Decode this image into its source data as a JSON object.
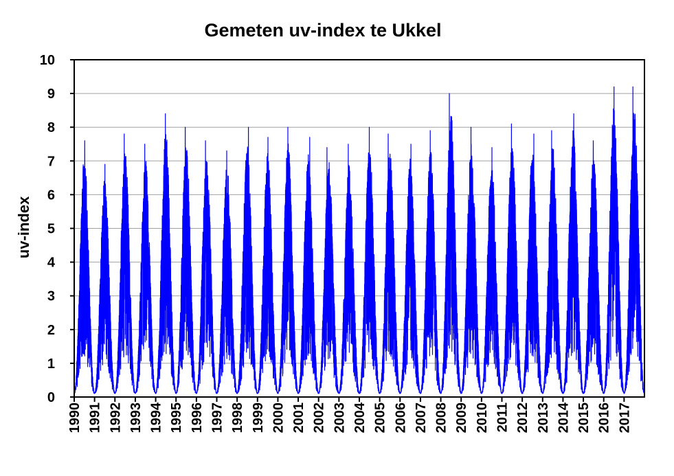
{
  "chart_data": {
    "type": "line",
    "title": "Gemeten uv-index te Ukkel",
    "xlabel": "",
    "ylabel": "uv-index",
    "xlim": [
      1990,
      2018
    ],
    "ylim": [
      0,
      10
    ],
    "y_ticks": [
      0,
      1,
      2,
      3,
      4,
      5,
      6,
      7,
      8,
      9,
      10
    ],
    "x_ticks": [
      1990,
      1991,
      1992,
      1993,
      1994,
      1995,
      1996,
      1997,
      1998,
      1999,
      2000,
      2001,
      2002,
      2003,
      2004,
      2005,
      2006,
      2007,
      2008,
      2009,
      2010,
      2011,
      2012,
      2013,
      2014,
      2015,
      2016,
      2017
    ],
    "grid": {
      "horizontal": true,
      "vertical": false
    },
    "legend": "none",
    "series_color": "#0000FF",
    "grid_color": "#A0A0A0",
    "resolution": "daily",
    "annual_peak_uv_index": [
      {
        "year": 1990,
        "peak": 7.6
      },
      {
        "year": 1991,
        "peak": 6.9
      },
      {
        "year": 1992,
        "peak": 7.8
      },
      {
        "year": 1993,
        "peak": 7.5
      },
      {
        "year": 1994,
        "peak": 8.4
      },
      {
        "year": 1995,
        "peak": 8.0
      },
      {
        "year": 1996,
        "peak": 7.6
      },
      {
        "year": 1997,
        "peak": 7.3
      },
      {
        "year": 1998,
        "peak": 8.0
      },
      {
        "year": 1999,
        "peak": 7.7
      },
      {
        "year": 2000,
        "peak": 8.0
      },
      {
        "year": 2001,
        "peak": 7.7
      },
      {
        "year": 2002,
        "peak": 7.4
      },
      {
        "year": 2003,
        "peak": 7.5
      },
      {
        "year": 2004,
        "peak": 8.0
      },
      {
        "year": 2005,
        "peak": 7.8
      },
      {
        "year": 2006,
        "peak": 7.5
      },
      {
        "year": 2007,
        "peak": 7.9
      },
      {
        "year": 2008,
        "peak": 9.0
      },
      {
        "year": 2009,
        "peak": 8.0
      },
      {
        "year": 2010,
        "peak": 7.4
      },
      {
        "year": 2011,
        "peak": 8.1
      },
      {
        "year": 2012,
        "peak": 7.8
      },
      {
        "year": 2013,
        "peak": 7.9
      },
      {
        "year": 2014,
        "peak": 8.4
      },
      {
        "year": 2015,
        "peak": 7.6
      },
      {
        "year": 2016,
        "peak": 9.2
      },
      {
        "year": 2017,
        "peak": 9.2
      }
    ],
    "winter_minimum_uv_index": 0.1
  }
}
